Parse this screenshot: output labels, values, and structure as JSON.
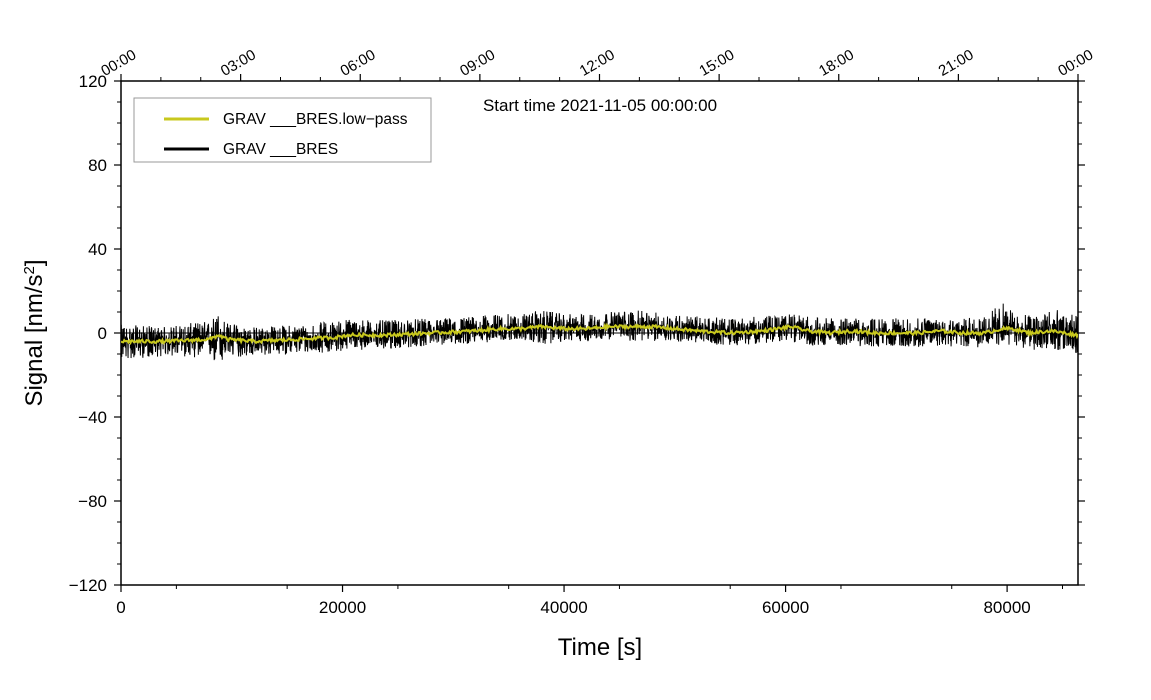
{
  "chart_data": {
    "type": "line",
    "xlabel": "Time [s]",
    "ylabel": "Signal [nm/s²]",
    "annotation": "Start time 2021-11-05 00:00:00",
    "xlim": [
      0,
      86400
    ],
    "ylim": [
      -120,
      120
    ],
    "x_ticks": [
      0,
      20000,
      40000,
      60000,
      80000
    ],
    "x_tick_labels": [
      "0",
      "20000",
      "40000",
      "60000",
      "80000"
    ],
    "y_ticks": [
      -120,
      -80,
      -40,
      0,
      40,
      80,
      120
    ],
    "y_tick_labels": [
      "−120",
      "−80",
      "−40",
      "0",
      "40",
      "80",
      "120"
    ],
    "top_axis": {
      "ticks": [
        0,
        10800,
        21600,
        32400,
        43200,
        54000,
        64800,
        75600,
        86400
      ],
      "labels": [
        "00:00",
        "03:00",
        "06:00",
        "09:00",
        "12:00",
        "15:00",
        "18:00",
        "21:00",
        "00:00"
      ]
    },
    "grid": false,
    "legend_position": "top-left",
    "series": [
      {
        "name": "GRAV ___BRES.low−pass",
        "color": "#c8c81e",
        "x": [
          0,
          4000,
          8000,
          8800,
          9600,
          12000,
          16000,
          19500,
          20500,
          24000,
          28000,
          32000,
          34000,
          36000,
          38000,
          40000,
          42000,
          44000,
          46000,
          48000,
          50000,
          52000,
          55000,
          58000,
          60500,
          62000,
          64000,
          66000,
          68000,
          70000,
          72000,
          74000,
          76000,
          78000,
          79500,
          80500,
          82000,
          84000,
          86400
        ],
        "values": [
          -4,
          -4,
          -3,
          -1,
          -3,
          -4,
          -3,
          -2,
          -1,
          -1,
          0,
          1,
          2,
          2,
          3,
          2,
          2,
          3,
          3,
          3,
          2,
          1,
          0,
          1,
          3,
          1,
          0,
          1,
          0,
          0,
          0,
          1,
          0,
          0,
          2,
          2,
          0,
          1,
          -1
        ]
      },
      {
        "name": "GRAV ___BRES",
        "color": "#000000",
        "x": [
          0,
          4000,
          8000,
          8800,
          9600,
          12000,
          16000,
          19500,
          20500,
          24000,
          28000,
          32000,
          34000,
          36000,
          38000,
          40000,
          42000,
          44000,
          46000,
          48000,
          50000,
          52000,
          55000,
          58000,
          60500,
          62000,
          64000,
          66000,
          68000,
          70000,
          72000,
          74000,
          76000,
          78000,
          79500,
          80500,
          82000,
          84000,
          86400
        ],
        "values": [
          -4,
          -4,
          -3,
          -1,
          -3,
          -4,
          -3,
          -2,
          -1,
          -1,
          0,
          1,
          2,
          2,
          3,
          2,
          2,
          3,
          3,
          3,
          2,
          1,
          0,
          1,
          3,
          1,
          0,
          1,
          0,
          0,
          0,
          1,
          0,
          0,
          2,
          2,
          0,
          1,
          -1
        ],
        "noise_amplitude_min": [
          -13,
          -11,
          -12,
          -17,
          -12,
          -11,
          -10,
          -9,
          -8,
          -8,
          -6,
          -5,
          -4,
          -3,
          -6,
          -4,
          -4,
          -3,
          -4,
          -4,
          -4,
          -5,
          -6,
          -5,
          -4,
          -6,
          -6,
          -6,
          -7,
          -6,
          -7,
          -6,
          -7,
          -7,
          -6,
          -6,
          -8,
          -8,
          -10
        ],
        "noise_amplitude_max": [
          4,
          3,
          6,
          10,
          5,
          3,
          4,
          6,
          7,
          6,
          7,
          8,
          9,
          9,
          11,
          9,
          9,
          10,
          11,
          10,
          9,
          8,
          7,
          8,
          9,
          8,
          7,
          7,
          7,
          7,
          7,
          8,
          7,
          8,
          15,
          10,
          9,
          12,
          8
        ]
      }
    ]
  }
}
